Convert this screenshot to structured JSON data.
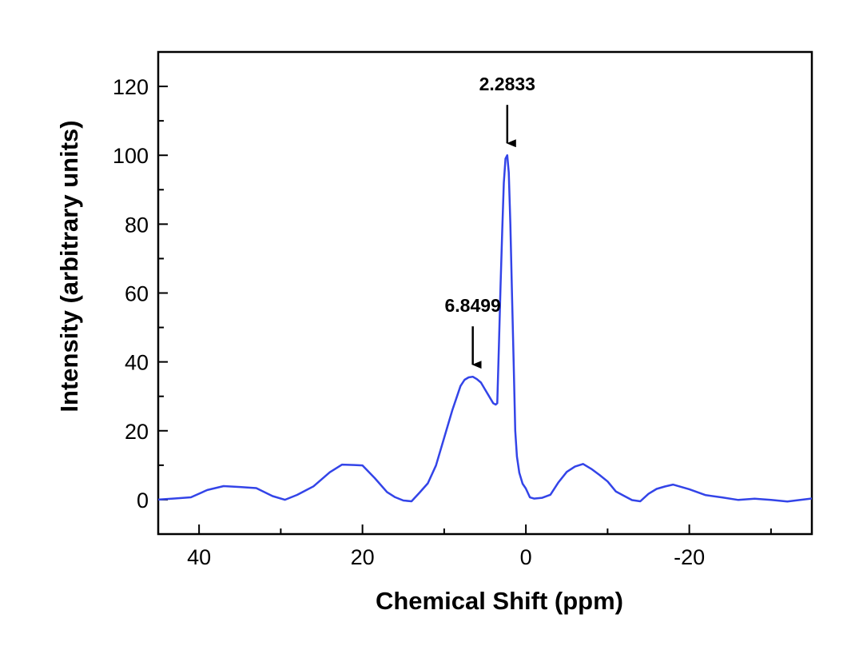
{
  "chart_data": {
    "type": "line",
    "title": "",
    "xlabel": "Chemical Shift (ppm)",
    "ylabel": "Intensity (arbitrary units)",
    "xlim": [
      45,
      -35
    ],
    "ylim": [
      -10,
      130
    ],
    "x_reversed": true,
    "grid": false,
    "legend": "none",
    "x_ticks": [
      40,
      20,
      0,
      -20
    ],
    "x_tick_labels": [
      "40",
      "20",
      "0",
      "-20"
    ],
    "y_ticks": [
      0,
      20,
      40,
      60,
      80,
      100,
      120
    ],
    "y_tick_labels": [
      "0",
      "20",
      "40",
      "60",
      "80",
      "100",
      "120"
    ],
    "series": [
      {
        "color": "#3344e8",
        "x": [
          45,
          43,
          41,
          39,
          37,
          35,
          33,
          31,
          29.5,
          28,
          26,
          24,
          22.5,
          21,
          20,
          18.5,
          17,
          16,
          15,
          14,
          13,
          12,
          11,
          10,
          9,
          8,
          7.5,
          7,
          6.5,
          6,
          5.5,
          5,
          4.5,
          4,
          3.7,
          3.5,
          3.3,
          3.1,
          2.9,
          2.7,
          2.5,
          2.28,
          2.1,
          1.9,
          1.7,
          1.5,
          1.3,
          1.1,
          0.8,
          0.4,
          0,
          -0.5,
          -1,
          -2,
          -3,
          -4,
          -5,
          -6,
          -7,
          -8,
          -9,
          -10,
          -11,
          -12,
          -13,
          -14,
          -15,
          -16,
          -17,
          -18,
          -20,
          -22,
          -24,
          -26,
          -28,
          -30,
          -32,
          -35
        ],
        "y": [
          0,
          0.3,
          1.2,
          2.5,
          3.6,
          3.9,
          3.2,
          1.4,
          0.1,
          0.8,
          4,
          8,
          10.2,
          10.5,
          9.5,
          6,
          2.5,
          0.6,
          0.1,
          -0.5,
          1.5,
          5,
          10,
          18,
          26,
          33,
          34.8,
          35.5,
          35.7,
          35,
          34,
          32,
          30,
          28,
          27.6,
          28,
          45,
          62,
          78,
          92,
          99,
          100,
          95,
          80,
          60,
          40,
          20,
          12,
          8,
          5,
          3,
          0.8,
          0,
          0.3,
          2,
          5,
          8,
          9.6,
          9.9,
          9.3,
          7.5,
          5,
          2.5,
          0.8,
          -0.2,
          0.1,
          1.5,
          3,
          3.8,
          4,
          3.5,
          1.5,
          0.3,
          0,
          0,
          0,
          0,
          0
        ]
      }
    ],
    "annotations": [
      {
        "text": "2.2833",
        "x": 2.28,
        "y": 100
      },
      {
        "text": "6.8499",
        "x": 6.5,
        "y": 35.7
      }
    ]
  }
}
